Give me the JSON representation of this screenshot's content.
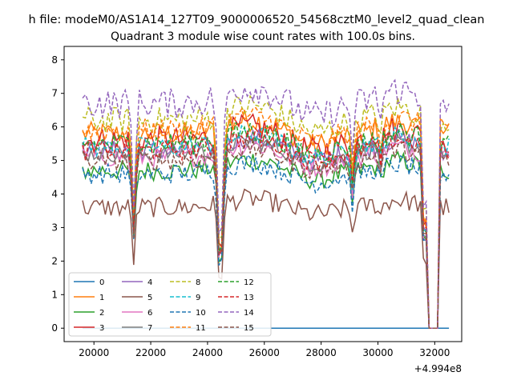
{
  "chart_data": {
    "type": "line",
    "suptitle": "h file: modeM0/AS1A14_127T09_9000006520_54568cztM0_level2_quad_clean",
    "title": "Quadrant 3 module wise count rates with 100.0s bins.",
    "xlabel": "",
    "ylabel": "",
    "x_offset_label": "+4.994e8",
    "xlim": [
      18950,
      32950
    ],
    "ylim": [
      -0.4,
      8.4
    ],
    "x_range": [
      19600,
      32500
    ],
    "x_ticks": [
      "20000",
      "22000",
      "24000",
      "26000",
      "28000",
      "30000",
      "32000"
    ],
    "x_tick_values": [
      20000,
      22000,
      24000,
      26000,
      28000,
      30000,
      32000
    ],
    "y_ticks": [
      "0",
      "1",
      "2",
      "3",
      "4",
      "5",
      "6",
      "7",
      "8"
    ],
    "y_tick_values": [
      0,
      1,
      2,
      3,
      4,
      5,
      6,
      7,
      8
    ],
    "dips": [
      {
        "center": 21400,
        "depth": 0.45
      },
      {
        "center": 24450,
        "depth": 0.58
      },
      {
        "center": 29100,
        "depth": 0.2
      },
      {
        "center": 30100,
        "depth": 0.1
      }
    ],
    "gap": {
      "start": 31800,
      "end": 32150,
      "value": 0
    },
    "early_dip": {
      "x": 31650,
      "value": 0.55
    },
    "series": [
      {
        "name": "0",
        "color": "#1f77b4",
        "dash": false,
        "level": 0.0,
        "noise": 0.0
      },
      {
        "name": "1",
        "color": "#ff7f0e",
        "dash": false,
        "level": 5.8,
        "noise": 0.35
      },
      {
        "name": "2",
        "color": "#2ca02c",
        "dash": false,
        "level": 4.7,
        "noise": 0.3
      },
      {
        "name": "3",
        "color": "#d62728",
        "dash": false,
        "level": 5.6,
        "noise": 0.4
      },
      {
        "name": "4",
        "color": "#9467bd",
        "dash": false,
        "level": 5.3,
        "noise": 0.3
      },
      {
        "name": "5",
        "color": "#8c564b",
        "dash": false,
        "level": 3.6,
        "noise": 0.3
      },
      {
        "name": "6",
        "color": "#e377c2",
        "dash": false,
        "level": 5.1,
        "noise": 0.3
      },
      {
        "name": "7",
        "color": "#7f7f7f",
        "dash": false,
        "level": 5.2,
        "noise": 0.25
      },
      {
        "name": "8",
        "color": "#bcbd22",
        "dash": true,
        "level": 6.2,
        "noise": 0.4
      },
      {
        "name": "9",
        "color": "#17becf",
        "dash": true,
        "level": 5.4,
        "noise": 0.3
      },
      {
        "name": "10",
        "color": "#1f77b4",
        "dash": true,
        "level": 4.6,
        "noise": 0.3
      },
      {
        "name": "11",
        "color": "#ff7f0e",
        "dash": true,
        "level": 5.9,
        "noise": 0.35
      },
      {
        "name": "12",
        "color": "#2ca02c",
        "dash": true,
        "level": 5.5,
        "noise": 0.35
      },
      {
        "name": "13",
        "color": "#d62728",
        "dash": true,
        "level": 5.3,
        "noise": 0.3
      },
      {
        "name": "14",
        "color": "#9467bd",
        "dash": true,
        "level": 6.7,
        "noise": 0.45
      },
      {
        "name": "15",
        "color": "#8c564b",
        "dash": true,
        "level": 5.0,
        "noise": 0.3
      }
    ]
  }
}
